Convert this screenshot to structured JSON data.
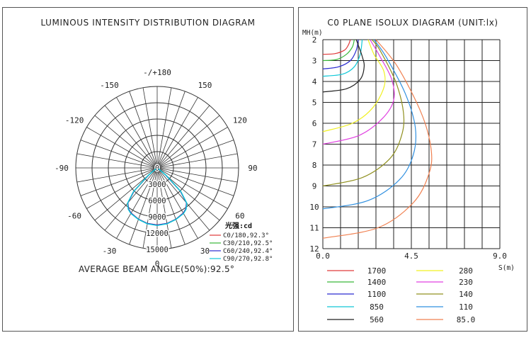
{
  "left_title": "LUMINOUS INTENSITY DISTRIBUTION DIAGRAM",
  "right_title": "C0 PLANE ISOLUX DIAGRAM (UNIT:lx)",
  "beam_angle": "AVERAGE BEAM ANGLE(50%):92.5°",
  "legend_title": "光强:cd",
  "chart_data": [
    {
      "type": "polar",
      "angle_labels": [
        "-/+180",
        "150",
        "120",
        "90",
        "60",
        "30",
        "0",
        "-30",
        "-60",
        "-90",
        "-120",
        "-150"
      ],
      "radial_labels": [
        "0",
        "3000",
        "6000",
        "9000",
        "12000",
        "15000"
      ],
      "rmax": 15000,
      "series": [
        {
          "name": "C0/180,92.3°",
          "color": "#e03a3a",
          "points": [
            [
              0,
              10500
            ],
            [
              10,
              10380
            ],
            [
              20,
              10050
            ],
            [
              30,
              9600
            ],
            [
              35,
              9200
            ],
            [
              40,
              8400
            ],
            [
              45,
              6000
            ],
            [
              50,
              2000
            ],
            [
              55,
              300
            ]
          ]
        },
        {
          "name": "C30/210,92.5°",
          "color": "#3ab83a",
          "points": [
            [
              0,
              10550
            ],
            [
              10,
              10420
            ],
            [
              20,
              10080
            ],
            [
              30,
              9650
            ],
            [
              35,
              9250
            ],
            [
              40,
              8450
            ],
            [
              45,
              6100
            ],
            [
              50,
              2100
            ],
            [
              55,
              300
            ]
          ]
        },
        {
          "name": "C60/240,92.4°",
          "color": "#2a2ad0",
          "points": [
            [
              0,
              10520
            ],
            [
              10,
              10400
            ],
            [
              20,
              10060
            ],
            [
              30,
              9620
            ],
            [
              35,
              9220
            ],
            [
              40,
              8420
            ],
            [
              45,
              6050
            ],
            [
              50,
              2050
            ],
            [
              55,
              300
            ]
          ]
        },
        {
          "name": "C90/270,92.8°",
          "color": "#10c8d8",
          "points": [
            [
              0,
              10600
            ],
            [
              10,
              10450
            ],
            [
              20,
              10100
            ],
            [
              30,
              9700
            ],
            [
              35,
              9300
            ],
            [
              40,
              8500
            ],
            [
              45,
              6200
            ],
            [
              50,
              2200
            ],
            [
              55,
              300
            ]
          ]
        }
      ]
    },
    {
      "type": "line",
      "ylabel": "MH(m)",
      "xlabel": "S(m)",
      "xlim": [
        0,
        9
      ],
      "ylim": [
        2,
        12
      ],
      "x_ticks": [
        "0.0",
        "4.5",
        "9.0"
      ],
      "y_ticks": [
        "2",
        "3",
        "4",
        "5",
        "6",
        "7",
        "8",
        "9",
        "10",
        "11",
        "12"
      ],
      "series": [
        {
          "name": "1700",
          "color": "#e03a3a",
          "points": [
            [
              0,
              2.7
            ],
            [
              0.6,
              2.67
            ],
            [
              1.1,
              2.5
            ],
            [
              1.3,
              2.25
            ],
            [
              1.4,
              2.0
            ]
          ]
        },
        {
          "name": "1400",
          "color": "#3ab83a",
          "points": [
            [
              0,
              3.0
            ],
            [
              0.7,
              2.95
            ],
            [
              1.2,
              2.7
            ],
            [
              1.5,
              2.35
            ],
            [
              1.6,
              2.0
            ]
          ]
        },
        {
          "name": "1100",
          "color": "#2a2ad0",
          "points": [
            [
              0,
              3.4
            ],
            [
              0.8,
              3.3
            ],
            [
              1.4,
              3.0
            ],
            [
              1.7,
              2.5
            ],
            [
              1.8,
              2.0
            ]
          ]
        },
        {
          "name": "850",
          "color": "#10c8d8",
          "points": [
            [
              0,
              3.75
            ],
            [
              1.0,
              3.65
            ],
            [
              1.6,
              3.3
            ],
            [
              1.9,
              2.7
            ],
            [
              2.0,
              2.0
            ]
          ]
        },
        {
          "name": "560",
          "color": "#222222",
          "points": [
            [
              0,
              4.5
            ],
            [
              1.2,
              4.35
            ],
            [
              1.9,
              3.9
            ],
            [
              2.1,
              3.3
            ],
            [
              2.0,
              2.8
            ],
            [
              1.7,
              2.0
            ]
          ]
        },
        {
          "name": "280",
          "color": "#f0f020",
          "points": [
            [
              0,
              6.4
            ],
            [
              1.5,
              6.0
            ],
            [
              2.5,
              5.3
            ],
            [
              3.1,
              4.3
            ],
            [
              3.1,
              3.5
            ],
            [
              2.6,
              2.7
            ],
            [
              2.3,
              2.0
            ]
          ]
        },
        {
          "name": "230",
          "color": "#e040e0",
          "points": [
            [
              0,
              7.0
            ],
            [
              1.8,
              6.6
            ],
            [
              3.0,
              5.8
            ],
            [
              3.6,
              4.9
            ],
            [
              3.5,
              3.9
            ],
            [
              2.9,
              2.8
            ],
            [
              2.4,
              2.0
            ]
          ]
        },
        {
          "name": "140",
          "color": "#909020",
          "points": [
            [
              0,
              9.0
            ],
            [
              2.0,
              8.6
            ],
            [
              3.4,
              7.7
            ],
            [
              4.0,
              6.6
            ],
            [
              4.1,
              5.5
            ],
            [
              3.7,
              4.0
            ],
            [
              2.9,
              2.5
            ],
            [
              2.5,
              2.0
            ]
          ]
        },
        {
          "name": "110",
          "color": "#3090e0",
          "points": [
            [
              0,
              10.1
            ],
            [
              2.3,
              9.7
            ],
            [
              3.9,
              8.7
            ],
            [
              4.6,
              7.5
            ],
            [
              4.7,
              6.2
            ],
            [
              4.2,
              4.6
            ],
            [
              3.2,
              2.8
            ],
            [
              2.6,
              2.0
            ]
          ]
        },
        {
          "name": "85.0",
          "color": "#f08050",
          "points": [
            [
              0,
              11.5
            ],
            [
              2.8,
              11.0
            ],
            [
              4.6,
              9.8
            ],
            [
              5.4,
              8.4
            ],
            [
              5.5,
              7.2
            ],
            [
              5.0,
              5.5
            ],
            [
              3.8,
              3.3
            ],
            [
              2.7,
              2.0
            ]
          ]
        }
      ]
    }
  ]
}
